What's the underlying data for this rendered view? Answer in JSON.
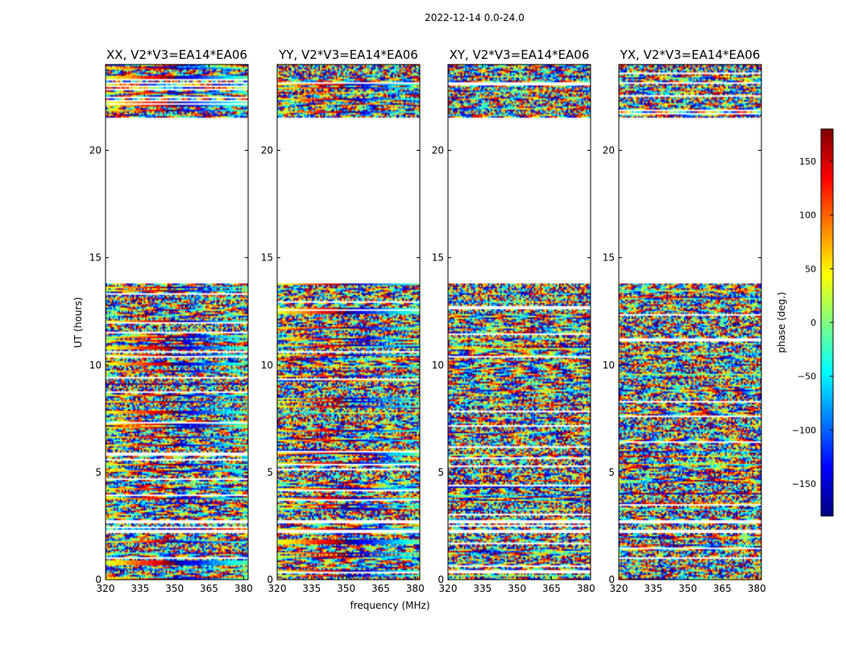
{
  "figure_title": "2022-12-14 0.0-24.0",
  "chart_data": {
    "type": "heatmap",
    "title": "2022-12-14 0.0-24.0",
    "xlabel": "frequency (MHz)",
    "ylabel": "UT (hours)",
    "xlim": [
      320,
      382
    ],
    "ylim": [
      0,
      24
    ],
    "x_ticks": [
      320,
      335,
      350,
      365,
      380
    ],
    "y_ticks": [
      0,
      5,
      10,
      15,
      20
    ],
    "panels": [
      {
        "title": "XX, V2*V3=EA14*EA06",
        "pol": "XX"
      },
      {
        "title": "YY, V2*V3=EA14*EA06",
        "pol": "YY"
      },
      {
        "title": "XY, V2*V3=EA14*EA06",
        "pol": "XY"
      },
      {
        "title": "YX, V2*V3=EA14*EA06",
        "pol": "YX"
      }
    ],
    "no_data_ut_ranges": [
      [
        13.8,
        21.5
      ],
      [
        23.1,
        23.2
      ],
      [
        2.2,
        2.35
      ],
      [
        2.6,
        2.75
      ]
    ],
    "colorbar": {
      "label": "phase (deg.)",
      "range": [
        -180,
        180
      ],
      "ticks": [
        -150,
        -100,
        -50,
        0,
        50,
        100,
        150
      ],
      "tick_labels": [
        "−150",
        "−100",
        "−50",
        "0",
        "50",
        "100",
        "150"
      ],
      "colormap": "jet"
    }
  }
}
